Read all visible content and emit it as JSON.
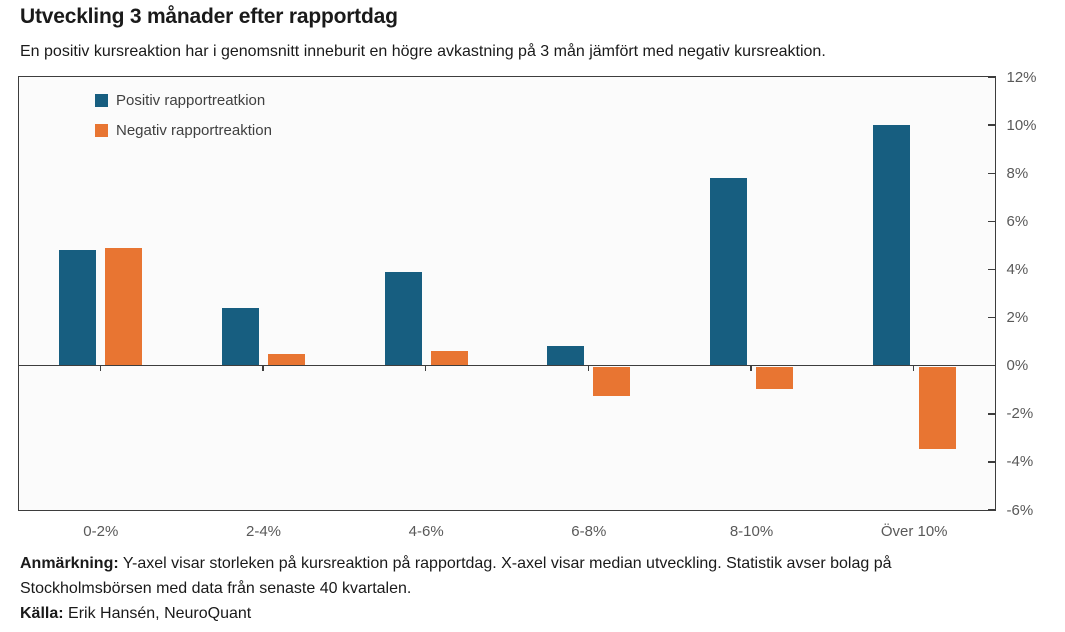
{
  "header": {
    "title": "Utveckling 3 månader efter rapportdag",
    "subtitle": "En positiv kursreaktion har i genomsnitt inneburit en högre avkastning på 3 mån jämfört med negativ kursreaktion."
  },
  "chart_data": {
    "type": "bar",
    "title": "Utveckling 3 månader efter rapportdag",
    "categories": [
      "0-2%",
      "2-4%",
      "4-6%",
      "6-8%",
      "8-10%",
      "Över 10%"
    ],
    "series": [
      {
        "name": "Positiv rapportreatkion",
        "color": "#175e80",
        "values": [
          4.8,
          2.4,
          3.9,
          0.8,
          7.8,
          10.0
        ]
      },
      {
        "name": "Negativ rapportreaktion",
        "color": "#e87532",
        "values": [
          4.9,
          0.5,
          0.6,
          -1.2,
          -0.9,
          -3.4
        ]
      }
    ],
    "xlabel": "",
    "ylabel": "",
    "ylim": [
      -6,
      12
    ],
    "ytick_step": 2,
    "ytick_labels": [
      "12%",
      "10%",
      "8%",
      "6%",
      "4%",
      "2%",
      "0%",
      "-2%",
      "-4%",
      "-6%"
    ],
    "grid": false,
    "legend_position": "top-left",
    "axis_color": "#3d3d3d",
    "tick_label_color": "#595959",
    "plot_background": "#fbfbfb"
  },
  "footer": {
    "note_label": "Anmärkning:",
    "note_lines": [
      "Y-axel visar storleken på kursreaktion på rapportdag. X-axel visar median utveckling. Statistik avser bolag på",
      "Stockholmsbörsen med data från senaste 40 kvartalen."
    ],
    "source_label": "Källa:",
    "source_text": "Erik Hansén, NeuroQuant"
  }
}
